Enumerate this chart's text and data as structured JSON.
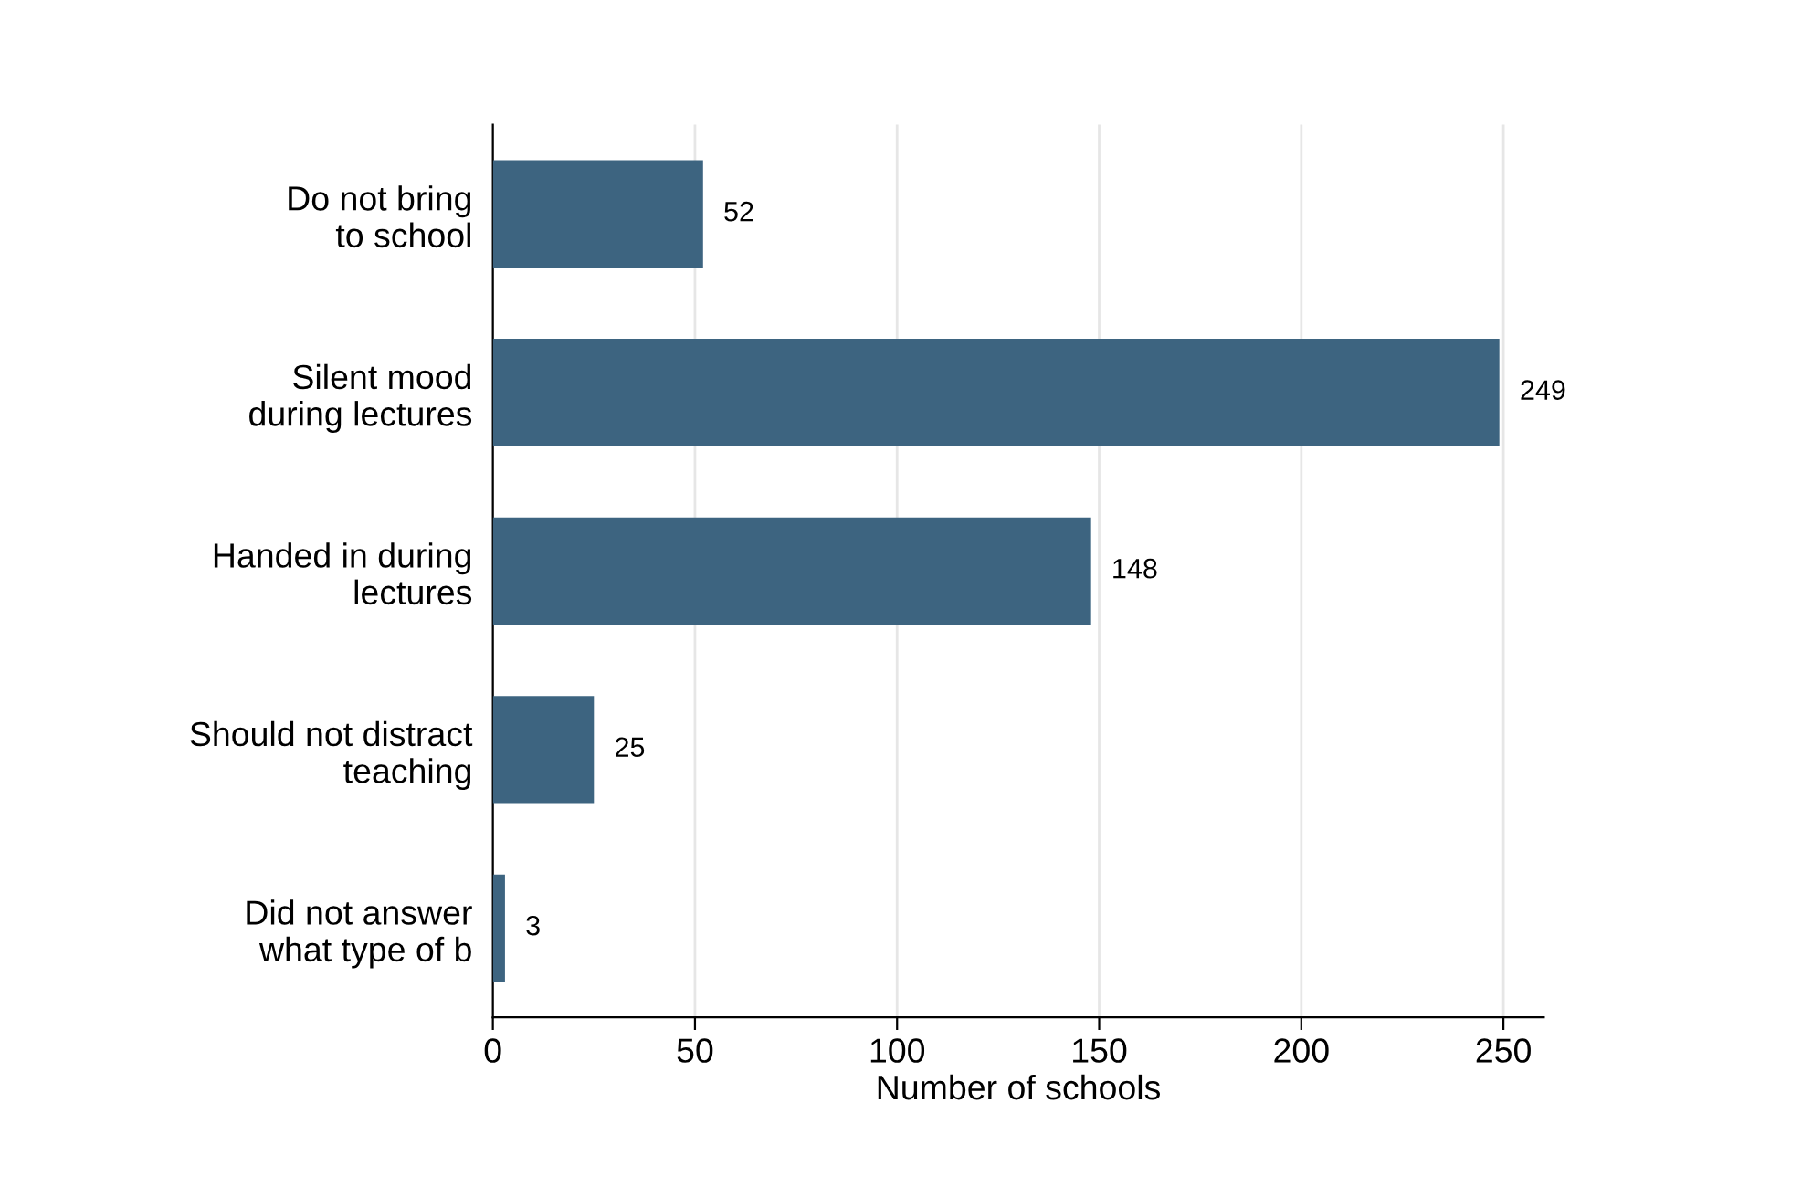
{
  "chart_data": {
    "type": "bar",
    "orientation": "horizontal",
    "xlabel": "Number of schools",
    "categories": [
      "Do not bring\nto school",
      "Silent mood\nduring lectures",
      "Handed in during\nlectures",
      "Should not distract\nteaching",
      "Did not answer\nwhat type of b"
    ],
    "values": [
      52,
      249,
      148,
      25,
      3
    ],
    "color": "#3d6480",
    "xlim": [
      0,
      260
    ],
    "xticks": [
      0,
      50,
      100,
      150,
      200,
      250
    ],
    "grid": "x",
    "data_labels": true
  }
}
